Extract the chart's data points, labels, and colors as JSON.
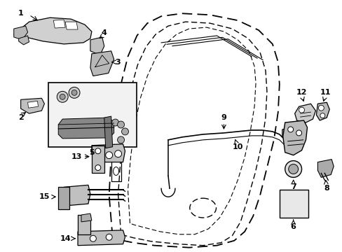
{
  "bg_color": "#ffffff",
  "fig_width": 4.89,
  "fig_height": 3.6,
  "dpi": 100,
  "line_color": "#000000"
}
